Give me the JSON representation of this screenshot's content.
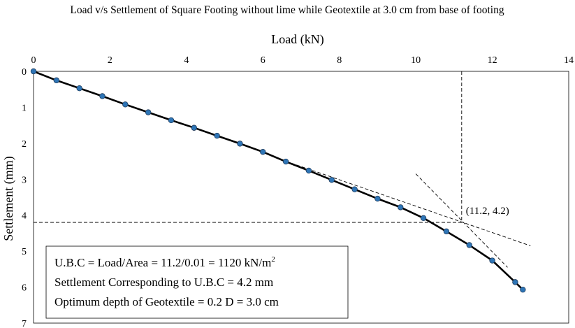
{
  "chart_data": {
    "type": "line",
    "title": "Load v/s Settlement of Square Footing without lime while Geotextile at 3.0 cm from base of footing",
    "xlabel": "Load (kN)",
    "ylabel": "Settlement (mm)",
    "xlim": [
      0,
      14
    ],
    "ylim": [
      0,
      7
    ],
    "y_inverted": true,
    "x_axis_position": "top",
    "x_ticks": [
      "0",
      "2",
      "4",
      "6",
      "8",
      "10",
      "12",
      "14"
    ],
    "y_ticks": [
      "0",
      "1",
      "2",
      "3",
      "4",
      "5",
      "6",
      "7"
    ],
    "grid": false,
    "series": [
      {
        "x": [
          0,
          0.6,
          1.2,
          1.8,
          2.4,
          3.0,
          3.6,
          4.2,
          4.8,
          5.4,
          6.0,
          6.6,
          7.2,
          7.8,
          8.4,
          9.0,
          9.6,
          10.2,
          10.8,
          11.4,
          12.0,
          12.6,
          12.8
        ],
        "y": [
          0,
          0.25,
          0.47,
          0.69,
          0.92,
          1.14,
          1.36,
          1.57,
          1.79,
          2.01,
          2.24,
          2.51,
          2.76,
          3.02,
          3.28,
          3.54,
          3.78,
          4.08,
          4.45,
          4.83,
          5.26,
          5.86,
          6.07
        ],
        "color": "#2e75b6",
        "marker": "circle",
        "line_color": "#000000"
      }
    ],
    "tangent_lines": [
      {
        "from": [
          6.6,
          2.5
        ],
        "to": [
          13.0,
          4.85
        ]
      },
      {
        "from": [
          10.0,
          2.85
        ],
        "to": [
          12.4,
          5.45
        ]
      }
    ],
    "reference_lines": [
      {
        "orientation": "vertical",
        "x": 11.2
      },
      {
        "orientation": "horizontal",
        "y": 4.2
      }
    ],
    "point_annotation": {
      "x": 11.2,
      "y": 4.2,
      "label": "(11.2, 4.2)"
    },
    "text_box": {
      "line1_main": "U.B.C = Load/Area = 11.2/0.01 = 1120 kN/m",
      "line1_sup": "2",
      "line2": "Settlement Corresponding to U.B.C = 4.2 mm",
      "line3": "Optimum depth of Geotextile = 0.2 D = 3.0 cm"
    }
  }
}
